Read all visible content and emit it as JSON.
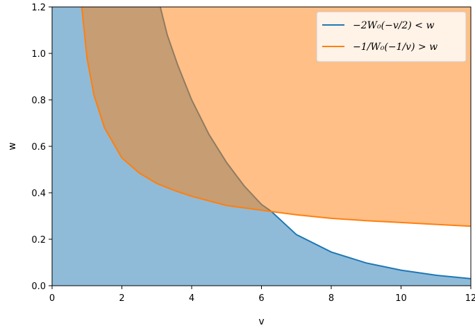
{
  "chart_data": {
    "type": "area",
    "xlabel": "v",
    "ylabel": "w",
    "xlim": [
      0,
      12
    ],
    "ylim": [
      0,
      1.2
    ],
    "x_ticks": [
      "0",
      "2",
      "4",
      "6",
      "8",
      "10",
      "12"
    ],
    "y_ticks": [
      "0.0",
      "0.2",
      "0.4",
      "0.6",
      "0.8",
      "1.0",
      "1.2"
    ],
    "grid": false,
    "legend_position": "top-right",
    "series": [
      {
        "name": "−2W₀(−v/2) < w",
        "color": "#1f77b4",
        "fill_color": "#1f77b4",
        "fill_opacity": 0.5,
        "fill": "below",
        "x": [
          3.1,
          3.3,
          3.6,
          4.0,
          4.5,
          5.0,
          5.5,
          6.0,
          6.28,
          7.0,
          8.0,
          9.0,
          10.0,
          11.0,
          12.0
        ],
        "y": [
          1.2,
          1.08,
          0.95,
          0.8,
          0.65,
          0.53,
          0.43,
          0.35,
          0.32,
          0.22,
          0.145,
          0.098,
          0.067,
          0.045,
          0.03
        ]
      },
      {
        "name": "−1/W₀(−1/v) > w",
        "color": "#ff7f0e",
        "fill_color": "#ff7f0e",
        "fill_opacity": 0.5,
        "fill": "above",
        "x": [
          0.85,
          1.0,
          1.2,
          1.5,
          2.0,
          2.5,
          3.0,
          3.5,
          4.0,
          5.0,
          6.0,
          7.0,
          8.0,
          9.0,
          10.0,
          11.0,
          12.0
        ],
        "y": [
          1.2,
          0.98,
          0.82,
          0.68,
          0.55,
          0.485,
          0.44,
          0.41,
          0.385,
          0.345,
          0.325,
          0.305,
          0.29,
          0.28,
          0.272,
          0.264,
          0.256
        ]
      }
    ]
  }
}
